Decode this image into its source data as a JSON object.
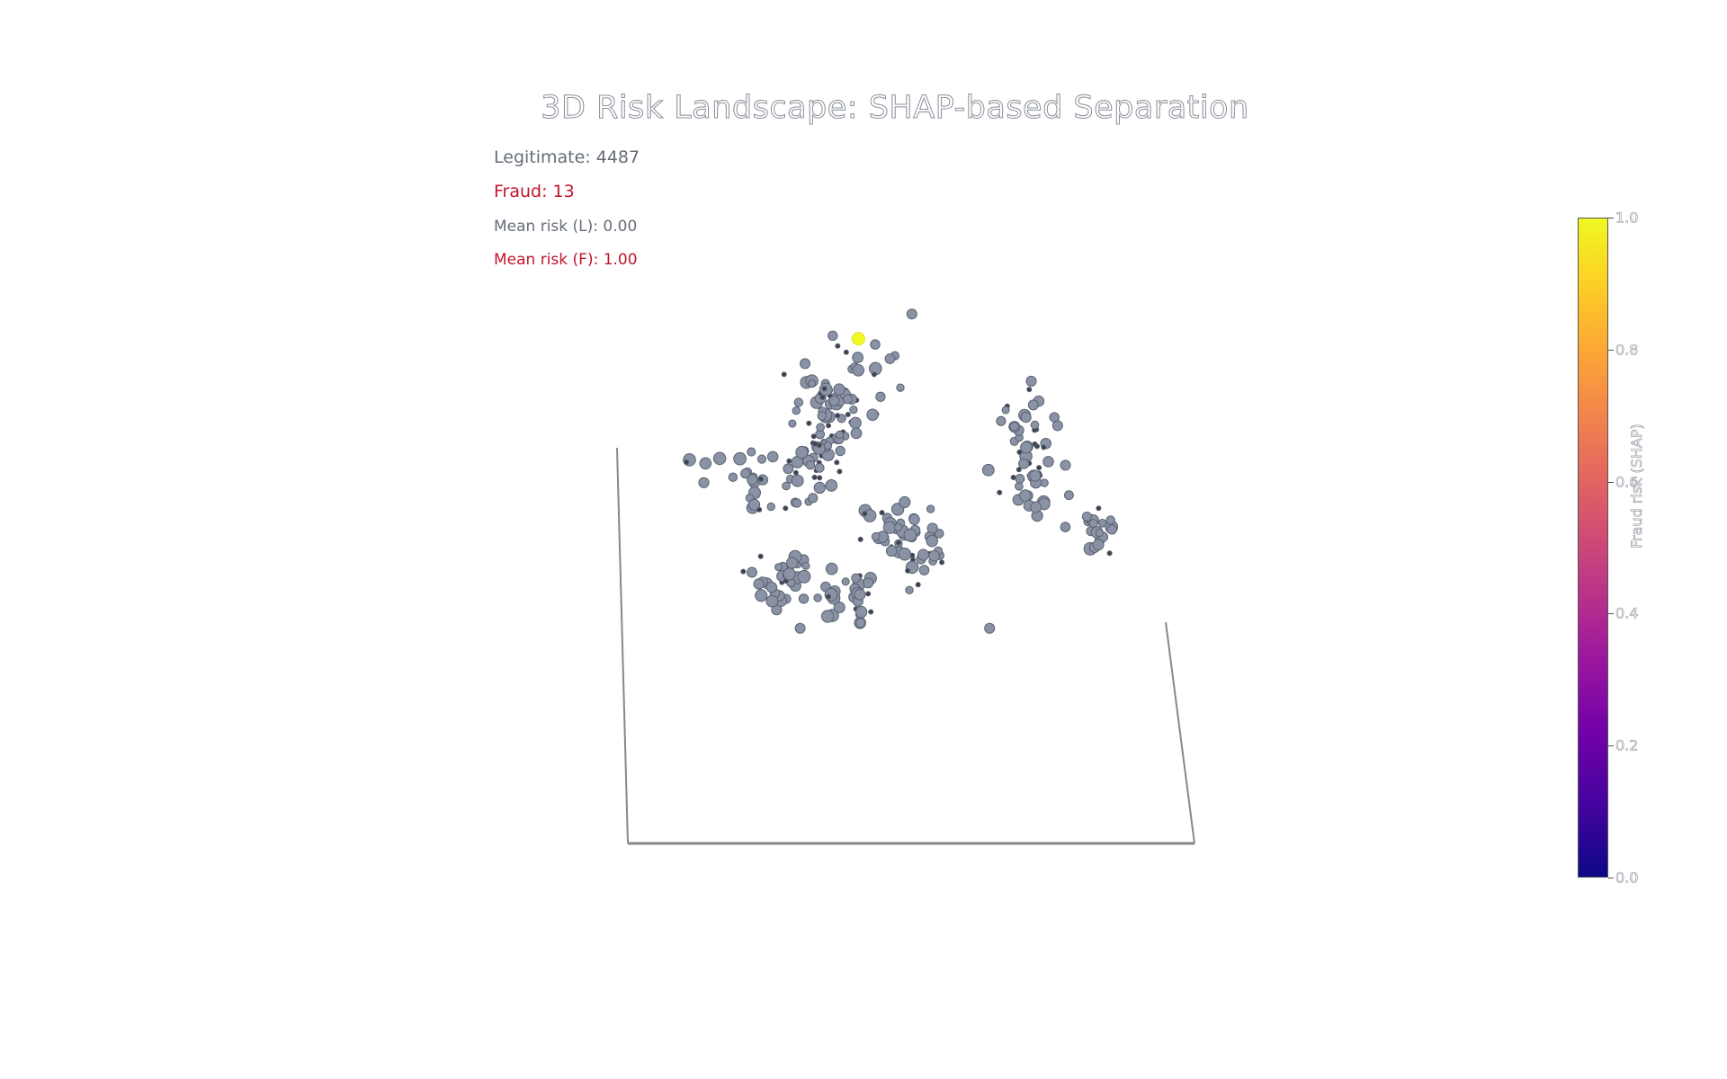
{
  "chart_data": {
    "type": "scatter",
    "title": "3D Risk Landscape: SHAP-based Separation",
    "annotations": {
      "legit_count": "Legitimate: 4487",
      "fraud_count": "Fraud: 13",
      "mean_risk_legit": "Mean risk (L): 0.00",
      "mean_risk_fraud": "Mean risk (F): 1.00"
    },
    "colorbar": {
      "title": "Fraud risk (SHAP)",
      "range": [
        0,
        1
      ],
      "ticks": [
        "0.0",
        "0.2",
        "0.4",
        "0.6",
        "0.8",
        "1.0"
      ],
      "colorscale": [
        "#0d0887",
        "#46039f",
        "#7201a8",
        "#9c179e",
        "#bd3786",
        "#d8576b",
        "#ed7953",
        "#fb9f3a",
        "#fdca26",
        "#f0f921"
      ]
    },
    "series": [
      {
        "name": "Legitimate",
        "color": "#8a93a6",
        "risk": 0.0
      },
      {
        "name": "Fraud",
        "color": "#f0f921",
        "risk": 1.0
      }
    ],
    "clusters": [
      {
        "x": 0.29,
        "y": 0.68,
        "n": 38,
        "spread": 0.035
      },
      {
        "x": 0.33,
        "y": 0.76,
        "n": 26,
        "spread": 0.03
      },
      {
        "x": 0.29,
        "y": 0.82,
        "n": 14,
        "spread": 0.03
      },
      {
        "x": 0.38,
        "y": 0.85,
        "n": 12,
        "spread": 0.03
      },
      {
        "x": 0.15,
        "y": 0.57,
        "n": 22,
        "spread": 0.035
      },
      {
        "x": 0.24,
        "y": 0.6,
        "n": 22,
        "spread": 0.03
      },
      {
        "x": 0.2,
        "y": 0.34,
        "n": 32,
        "spread": 0.025
      },
      {
        "x": 0.34,
        "y": 0.28,
        "n": 28,
        "spread": 0.03
      },
      {
        "x": 0.41,
        "y": 0.47,
        "n": 22,
        "spread": 0.03
      },
      {
        "x": 0.49,
        "y": 0.4,
        "n": 30,
        "spread": 0.035
      },
      {
        "x": 0.7,
        "y": 0.72,
        "n": 22,
        "spread": 0.03
      },
      {
        "x": 0.72,
        "y": 0.61,
        "n": 22,
        "spread": 0.03
      },
      {
        "x": 0.72,
        "y": 0.53,
        "n": 10,
        "spread": 0.02
      },
      {
        "x": 0.85,
        "y": 0.46,
        "n": 20,
        "spread": 0.02
      },
      {
        "x": 0.02,
        "y": 0.64,
        "n": 3,
        "spread": 0.01
      }
    ],
    "outliers": [
      {
        "x": 0.25,
        "y": 0.86
      },
      {
        "x": 0.31,
        "y": 0.77
      },
      {
        "x": 0.38,
        "y": 0.33
      },
      {
        "x": 0.24,
        "y": 0.22
      },
      {
        "x": 0.63,
        "y": 0.22
      },
      {
        "x": 0.47,
        "y": 0.98
      },
      {
        "x": 0.77,
        "y": 0.71
      },
      {
        "x": 0.72,
        "y": 0.76
      }
    ],
    "fraud_points": [
      {
        "x": 0.36,
        "y": 0.92
      }
    ]
  }
}
